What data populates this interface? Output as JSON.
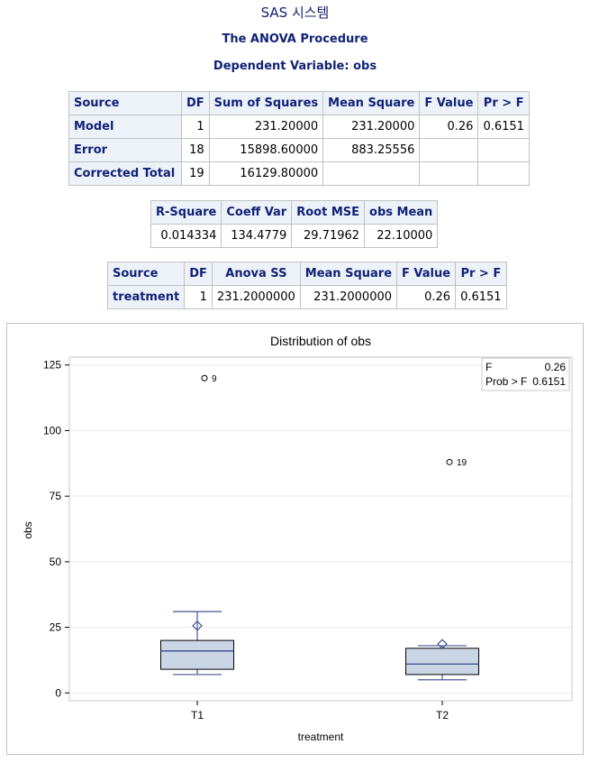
{
  "header": {
    "title": "SAS 시스템",
    "procedure": "The ANOVA Procedure",
    "dependent": "Dependent Variable: obs"
  },
  "anova_table": {
    "columns": [
      "Source",
      "DF",
      "Sum of Squares",
      "Mean Square",
      "F Value",
      "Pr > F"
    ],
    "rows": [
      {
        "source": "Model",
        "df": "1",
        "ss": "231.20000",
        "ms": "231.20000",
        "f": "0.26",
        "p": "0.6151"
      },
      {
        "source": "Error",
        "df": "18",
        "ss": "15898.60000",
        "ms": "883.25556",
        "f": "",
        "p": ""
      },
      {
        "source": "Corrected Total",
        "df": "19",
        "ss": "16129.80000",
        "ms": "",
        "f": "",
        "p": ""
      }
    ]
  },
  "fit_table": {
    "columns": [
      "R-Square",
      "Coeff Var",
      "Root MSE",
      "obs Mean"
    ],
    "values": [
      "0.014334",
      "134.4779",
      "29.71962",
      "22.10000"
    ]
  },
  "type_table": {
    "columns": [
      "Source",
      "DF",
      "Anova SS",
      "Mean Square",
      "F Value",
      "Pr > F"
    ],
    "row": {
      "source": "treatment",
      "df": "1",
      "ss": "231.2000000",
      "ms": "231.2000000",
      "f": "0.26",
      "p": "0.6151"
    }
  },
  "chart_data": {
    "type": "box",
    "title": "Distribution of obs",
    "xlabel": "treatment",
    "ylabel": "obs",
    "ylim": [
      -3,
      128
    ],
    "yticks": [
      0,
      25,
      50,
      75,
      100,
      125
    ],
    "categories": [
      "T1",
      "T2"
    ],
    "boxes": [
      {
        "category": "T1",
        "whisker_low": 7,
        "q1": 9,
        "median": 16,
        "q3": 20,
        "whisker_high": 31,
        "mean": 25.6,
        "outliers": [
          {
            "value": 120,
            "label": "9"
          }
        ]
      },
      {
        "category": "T2",
        "whisker_low": 5,
        "q1": 7,
        "median": 11,
        "q3": 17,
        "whisker_high": 18,
        "mean": 18.6,
        "outliers": [
          {
            "value": 88,
            "label": "19"
          }
        ]
      }
    ],
    "inset": {
      "rows": [
        {
          "label": "F",
          "value": "0.26"
        },
        {
          "label": "Prob > F",
          "value": "0.6151"
        }
      ]
    },
    "grid": true,
    "colors": {
      "box_fill": "#cad5e5",
      "line": "#445694",
      "frame": "#c8c8c8",
      "text": "#000000"
    }
  }
}
